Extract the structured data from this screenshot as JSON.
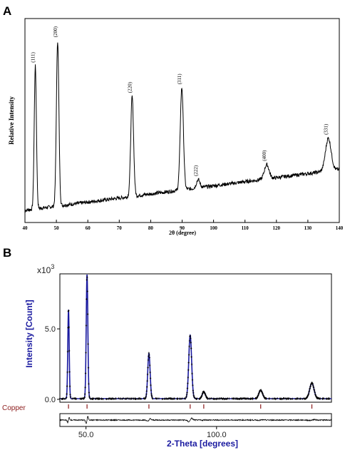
{
  "panels": {
    "a_label": "A",
    "b_label": "B"
  },
  "chart_data": [
    {
      "type": "line",
      "xlabel": "2θ (degree)",
      "ylabel": "Relative Intensity",
      "xlim": [
        40,
        140
      ],
      "x_ticks": [
        "40",
        "50",
        "60",
        "70",
        "80",
        "90",
        "100",
        "110",
        "120",
        "130",
        "140"
      ],
      "y_ticks": [],
      "grid": false,
      "color": "#000000",
      "baseline": [
        [
          40,
          0.06
        ],
        [
          140,
          0.26
        ]
      ],
      "peaks": [
        {
          "label": "(111)",
          "x": 43.3,
          "height": 0.7,
          "width": 0.35
        },
        {
          "label": "(200)",
          "x": 50.4,
          "height": 0.81,
          "width": 0.4
        },
        {
          "label": "(220)",
          "x": 74.1,
          "height": 0.49,
          "width": 0.45
        },
        {
          "label": "(311)",
          "x": 89.9,
          "height": 0.5,
          "width": 0.5
        },
        {
          "label": "(222)",
          "x": 95.1,
          "height": 0.04,
          "width": 0.55
        },
        {
          "label": "(400)",
          "x": 116.9,
          "height": 0.07,
          "width": 0.75
        },
        {
          "label": "(331)",
          "x": 136.5,
          "height": 0.16,
          "width": 0.9
        }
      ]
    },
    {
      "type": "line",
      "xlabel": "2-Theta [degrees]",
      "ylabel": "Intensity [Count]",
      "y_multiplier": "x10",
      "y_multiplier_exp": "3",
      "xlim": [
        40,
        144
      ],
      "ylim": [
        0,
        8.8
      ],
      "x_ticks": [
        "50.0",
        "100.0"
      ],
      "y_ticks": [
        "0.0",
        "5.0"
      ],
      "grid": false,
      "observed_color": "#000000",
      "calculated_color": "#1a1aa0",
      "peaks": [
        {
          "x": 43.3,
          "intensity": 6.3
        },
        {
          "x": 50.4,
          "intensity": 8.8
        },
        {
          "x": 74.1,
          "intensity": 3.2
        },
        {
          "x": 89.9,
          "intensity": 4.5
        },
        {
          "x": 95.1,
          "intensity": 0.5
        },
        {
          "x": 116.9,
          "intensity": 0.6
        },
        {
          "x": 136.5,
          "intensity": 1.1
        }
      ],
      "phase_label": "Copper",
      "phase_color": "#8b1a1a",
      "reflection_markers": [
        43.3,
        50.4,
        74.1,
        89.9,
        95.1,
        116.9,
        136.5
      ]
    }
  ]
}
